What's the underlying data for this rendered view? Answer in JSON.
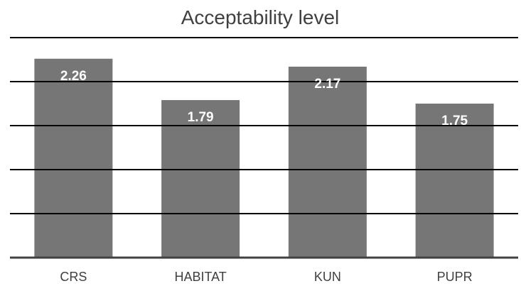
{
  "chart_data": {
    "type": "bar",
    "title": "Acceptability level",
    "categories": [
      "CRS",
      "HABITAT",
      "KUN",
      "PUPR"
    ],
    "values": [
      2.26,
      1.79,
      2.17,
      1.75
    ],
    "data_labels": [
      "2.26",
      "1.79",
      "2.17",
      "1.75"
    ],
    "xlabel": "",
    "ylabel": "",
    "ylim": [
      0,
      2.5
    ],
    "y_gridlines": [
      0,
      0.5,
      1.0,
      1.5,
      2.0,
      2.5
    ],
    "grid": true,
    "legend": "none",
    "bar_color": "#767676",
    "gridline_color": "#000000",
    "axis_color": "#404040",
    "label_color": "#ffffff"
  }
}
